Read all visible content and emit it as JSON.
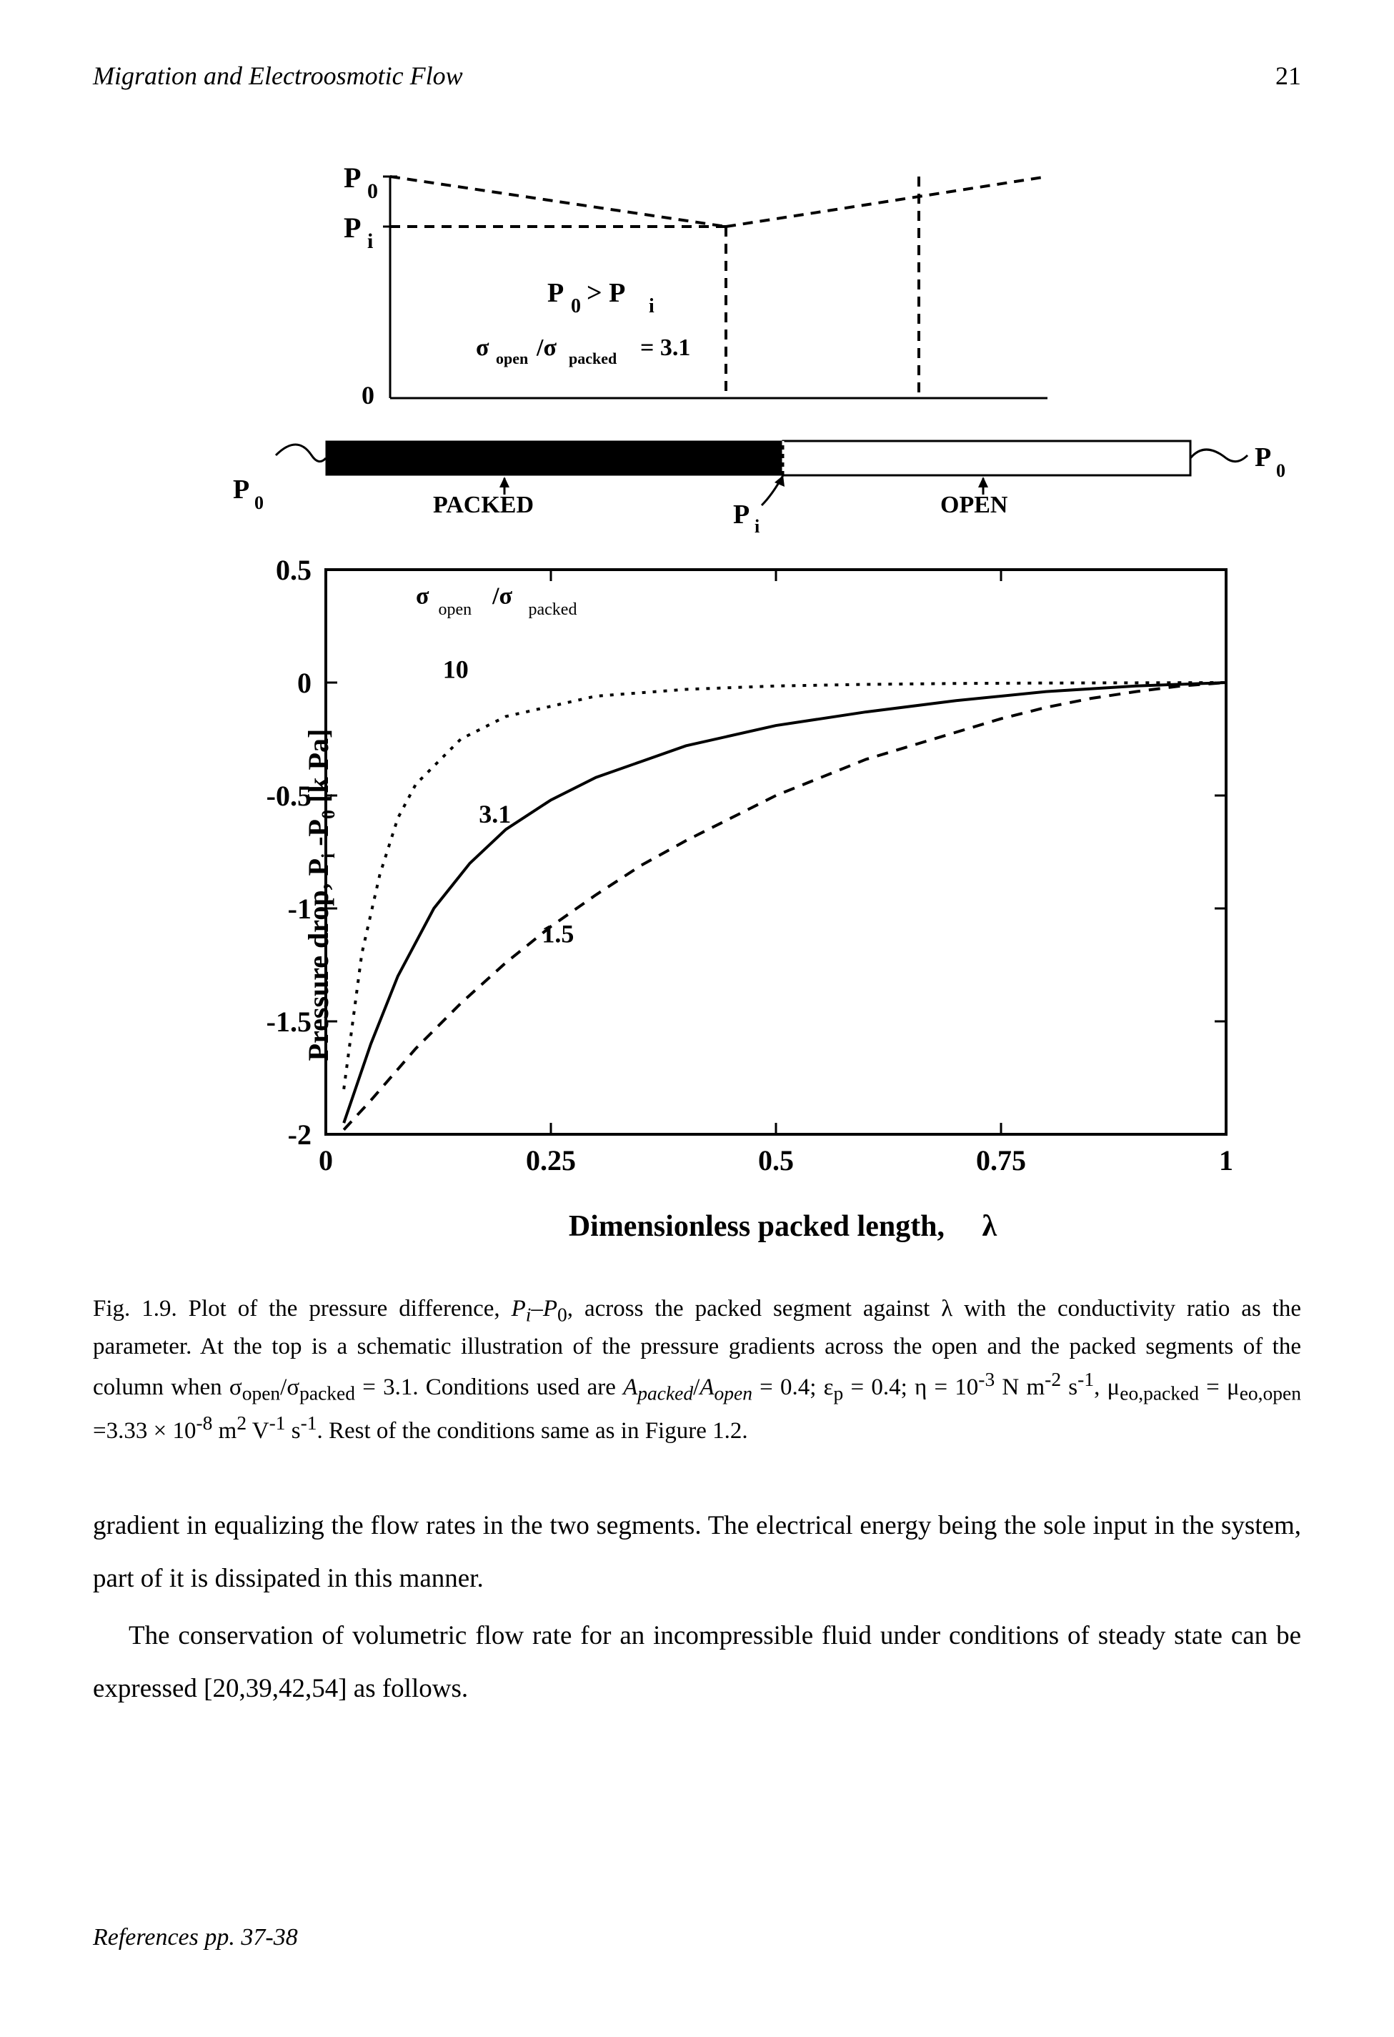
{
  "header": {
    "title": "Migration and Electroosmotic Flow",
    "page_number": "21"
  },
  "schematic": {
    "labels": {
      "p0_left": "P",
      "p0_left_sub": "0",
      "pi": "P",
      "pi_sub": "i",
      "zero": "0",
      "condition": "P",
      "condition_sub0": "0",
      "condition_gt": "> P",
      "condition_subi": "i",
      "sigma_ratio": "σ",
      "sigma_open": "open",
      "sigma_slash": " /σ",
      "sigma_packed": "packed",
      "sigma_val": "= 3.1"
    }
  },
  "column": {
    "p0_left": "P",
    "p0_left_sub": "0",
    "p0_right": "P",
    "p0_right_sub": "0",
    "packed_label": "PACKED",
    "open_label": "OPEN",
    "pi_label": "P",
    "pi_sub": "i"
  },
  "chart": {
    "type": "line",
    "xlim": [
      0,
      1
    ],
    "ylim": [
      -2,
      0.5
    ],
    "xticks": [
      0,
      0.25,
      0.5,
      0.75,
      1
    ],
    "xtick_labels": [
      "0",
      "0.25",
      "0.5",
      "0.75",
      "1"
    ],
    "yticks": [
      -2,
      -1.5,
      -1,
      -0.5,
      0,
      0.5
    ],
    "ytick_labels": [
      "-2",
      "-1.5",
      "-1",
      "-0.5",
      "0",
      "0.5"
    ],
    "ylabel": "Pressure drop, P  -P   [k Pa]",
    "ylabel_sub1": "i",
    "ylabel_sub2": "0",
    "xlabel": "Dimensionless packed length,",
    "xlabel_sym": "λ",
    "legend_sigma": "σ",
    "legend_open": "open",
    "legend_slash": " /σ",
    "legend_packed": "packed",
    "curve_labels": {
      "c1": "10",
      "c2": "3.1",
      "c3": "1.5"
    },
    "curves": {
      "10_dotted": [
        [
          0.02,
          -1.8
        ],
        [
          0.04,
          -1.2
        ],
        [
          0.06,
          -0.85
        ],
        [
          0.08,
          -0.6
        ],
        [
          0.1,
          -0.45
        ],
        [
          0.15,
          -0.25
        ],
        [
          0.2,
          -0.15
        ],
        [
          0.3,
          -0.06
        ],
        [
          0.4,
          -0.03
        ],
        [
          0.5,
          -0.015
        ],
        [
          0.6,
          -0.008
        ],
        [
          0.7,
          -0.004
        ],
        [
          0.8,
          -0.002
        ],
        [
          0.9,
          -0.001
        ],
        [
          1.0,
          0.0
        ]
      ],
      "3.1_solid": [
        [
          0.02,
          -1.95
        ],
        [
          0.05,
          -1.6
        ],
        [
          0.08,
          -1.3
        ],
        [
          0.12,
          -1.0
        ],
        [
          0.16,
          -0.8
        ],
        [
          0.2,
          -0.65
        ],
        [
          0.25,
          -0.52
        ],
        [
          0.3,
          -0.42
        ],
        [
          0.35,
          -0.35
        ],
        [
          0.4,
          -0.28
        ],
        [
          0.5,
          -0.19
        ],
        [
          0.6,
          -0.13
        ],
        [
          0.7,
          -0.08
        ],
        [
          0.8,
          -0.04
        ],
        [
          0.9,
          -0.015
        ],
        [
          1.0,
          0.0
        ]
      ],
      "1.5_dashed": [
        [
          0.02,
          -1.98
        ],
        [
          0.05,
          -1.85
        ],
        [
          0.1,
          -1.62
        ],
        [
          0.15,
          -1.42
        ],
        [
          0.2,
          -1.24
        ],
        [
          0.25,
          -1.08
        ],
        [
          0.3,
          -0.94
        ],
        [
          0.35,
          -0.81
        ],
        [
          0.4,
          -0.7
        ],
        [
          0.45,
          -0.6
        ],
        [
          0.5,
          -0.5
        ],
        [
          0.55,
          -0.42
        ],
        [
          0.6,
          -0.34
        ],
        [
          0.65,
          -0.28
        ],
        [
          0.7,
          -0.22
        ],
        [
          0.75,
          -0.16
        ],
        [
          0.8,
          -0.11
        ],
        [
          0.85,
          -0.07
        ],
        [
          0.9,
          -0.04
        ],
        [
          0.95,
          -0.015
        ],
        [
          1.0,
          0.0
        ]
      ]
    },
    "colors": {
      "axis": "#000000",
      "curve": "#000000",
      "background": "#ffffff"
    },
    "line_width": 4,
    "tick_fontsize": 38,
    "label_fontsize": 40
  },
  "caption": {
    "text1": "Fig. 1.9. Plot of the pressure difference, ",
    "text_pi": "P",
    "text_pi_sub": "i",
    "text_dash": "–",
    "text_p0": "P",
    "text_p0_sub": "0",
    "text2": ", across the packed segment against λ with the conductivity ratio as the parameter. At the top is a schematic illustration of the pressure gradients across the open and the packed segments of the column when σ",
    "text_open": "open",
    "text_slash": "/σ",
    "text_packed": "packed",
    "text_eq31": " = 3.1. Conditions used are ",
    "text_A1": "A",
    "text_A1_sub": "packed",
    "text_slash2": "/",
    "text_A2": "A",
    "text_A2_sub": "open",
    "text3": " = 0.4; ε",
    "text_ep": "p",
    "text4": " = 0.4; η = 10",
    "text_sup3": "-3",
    "text5": " N m",
    "text_sup2a": "-2",
    "text6": " s",
    "text_sup1a": "-1",
    "text7": ", μ",
    "text_eo1": "eo,packed",
    "text8": " = μ",
    "text_eo2": "eo,open",
    "text9": " =3.33 × 10",
    "text_sup8": "-8",
    "text10": " m",
    "text_sup2b": "2",
    "text11": " V",
    "text_sup1b": "-1",
    "text12": " s",
    "text_sup1c": "-1",
    "text13": ". Rest of the conditions same as in Figure 1.2."
  },
  "body": {
    "p1": "gradient in equalizing the flow rates in the two segments. The electrical energy being the sole input in the system, part of it is dissipated in this manner.",
    "p2": "The conservation of volumetric flow rate for an incompressible fluid under conditions of steady state can be expressed [20,39,42,54] as follows."
  },
  "footer": {
    "text": "References pp. 37-38"
  }
}
